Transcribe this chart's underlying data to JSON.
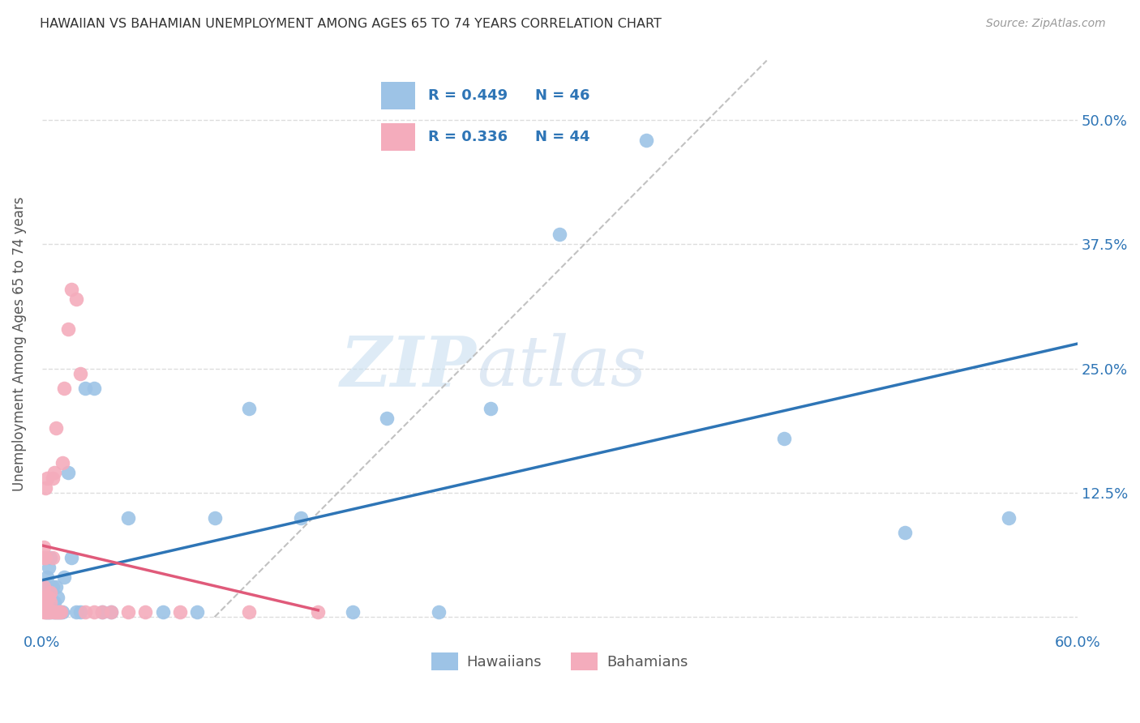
{
  "title": "HAWAIIAN VS BAHAMIAN UNEMPLOYMENT AMONG AGES 65 TO 74 YEARS CORRELATION CHART",
  "source": "Source: ZipAtlas.com",
  "ylabel": "Unemployment Among Ages 65 to 74 years",
  "xlim": [
    0.0,
    0.6
  ],
  "ylim": [
    -0.015,
    0.565
  ],
  "xticks": [
    0.0,
    0.12,
    0.24,
    0.36,
    0.48,
    0.6
  ],
  "xticklabels": [
    "0.0%",
    "",
    "",
    "",
    "",
    "60.0%"
  ],
  "ytick_positions": [
    0.0,
    0.125,
    0.25,
    0.375,
    0.5
  ],
  "yticklabels": [
    "",
    "12.5%",
    "25.0%",
    "37.5%",
    "50.0%"
  ],
  "hawaiians_R": "0.449",
  "hawaiians_N": "46",
  "bahamians_R": "0.336",
  "bahamians_N": "44",
  "hawaiians_color": "#9DC3E6",
  "bahamians_color": "#F4ACBC",
  "hawaiians_line_color": "#2E75B6",
  "bahamians_line_color": "#E05A7A",
  "diagonal_color": "#BBBBBB",
  "grid_color": "#DDDDDD",
  "title_color": "#333333",
  "axis_label_color": "#555555",
  "tick_label_color_x": "#2E75B6",
  "tick_label_color_y": "#2E75B6",
  "watermark_zip": "ZIP",
  "watermark_atlas": "atlas",
  "hawaiians_x": [
    0.001,
    0.002,
    0.002,
    0.003,
    0.003,
    0.003,
    0.004,
    0.004,
    0.005,
    0.005,
    0.005,
    0.006,
    0.006,
    0.007,
    0.007,
    0.008,
    0.008,
    0.009,
    0.009,
    0.01,
    0.011,
    0.012,
    0.013,
    0.015,
    0.017,
    0.02,
    0.022,
    0.025,
    0.03,
    0.035,
    0.04,
    0.05,
    0.07,
    0.09,
    0.1,
    0.12,
    0.15,
    0.18,
    0.2,
    0.23,
    0.26,
    0.3,
    0.35,
    0.43,
    0.5,
    0.56
  ],
  "hawaiians_y": [
    0.02,
    0.005,
    0.03,
    0.005,
    0.01,
    0.04,
    0.005,
    0.05,
    0.005,
    0.01,
    0.06,
    0.005,
    0.03,
    0.005,
    0.015,
    0.005,
    0.03,
    0.005,
    0.02,
    0.005,
    0.005,
    0.005,
    0.04,
    0.145,
    0.06,
    0.005,
    0.005,
    0.23,
    0.23,
    0.005,
    0.005,
    0.1,
    0.005,
    0.005,
    0.1,
    0.21,
    0.1,
    0.005,
    0.2,
    0.005,
    0.21,
    0.385,
    0.48,
    0.18,
    0.085,
    0.1
  ],
  "bahamians_x": [
    0.001,
    0.001,
    0.001,
    0.001,
    0.001,
    0.001,
    0.002,
    0.002,
    0.002,
    0.002,
    0.002,
    0.003,
    0.003,
    0.003,
    0.003,
    0.004,
    0.004,
    0.005,
    0.005,
    0.005,
    0.006,
    0.006,
    0.007,
    0.007,
    0.008,
    0.008,
    0.009,
    0.01,
    0.011,
    0.012,
    0.013,
    0.015,
    0.017,
    0.02,
    0.022,
    0.025,
    0.03,
    0.035,
    0.04,
    0.05,
    0.06,
    0.08,
    0.12,
    0.16
  ],
  "bahamians_y": [
    0.005,
    0.01,
    0.02,
    0.03,
    0.06,
    0.07,
    0.005,
    0.01,
    0.015,
    0.06,
    0.13,
    0.005,
    0.01,
    0.02,
    0.14,
    0.005,
    0.02,
    0.005,
    0.015,
    0.025,
    0.06,
    0.14,
    0.005,
    0.145,
    0.005,
    0.19,
    0.005,
    0.005,
    0.005,
    0.155,
    0.23,
    0.29,
    0.33,
    0.32,
    0.245,
    0.005,
    0.005,
    0.005,
    0.005,
    0.005,
    0.005,
    0.005,
    0.005,
    0.005
  ]
}
